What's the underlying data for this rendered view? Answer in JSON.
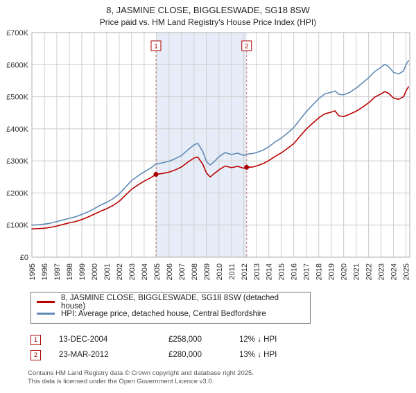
{
  "colors": {
    "accent": "#aa0000",
    "dashed": "#cc7777",
    "grid": "#cccccc",
    "plot_border": "#b0b0b0",
    "shade": "#e7edf8",
    "axis_text": "#333333"
  },
  "chart_data": {
    "type": "line",
    "title": "8, JASMINE CLOSE, BIGGLESWADE, SG18 8SW",
    "subtitle": "Price paid vs. HM Land Registry's House Price Index (HPI)",
    "xlabel": "",
    "ylabel": "",
    "grid": true,
    "legend_position": "bottom",
    "x_range": [
      1995,
      2025.3
    ],
    "ylim": [
      0,
      700000
    ],
    "x_ticks": [
      1995,
      1996,
      1997,
      1998,
      1999,
      2000,
      2001,
      2002,
      2003,
      2004,
      2005,
      2006,
      2007,
      2008,
      2009,
      2010,
      2011,
      2012,
      2013,
      2014,
      2015,
      2016,
      2017,
      2018,
      2019,
      2020,
      2021,
      2022,
      2023,
      2024,
      2025
    ],
    "y_ticks": [
      {
        "value": 0,
        "label": "£0"
      },
      {
        "value": 100000,
        "label": "£100K"
      },
      {
        "value": 200000,
        "label": "£200K"
      },
      {
        "value": 300000,
        "label": "£300K"
      },
      {
        "value": 400000,
        "label": "£400K"
      },
      {
        "value": 500000,
        "label": "£500K"
      },
      {
        "value": 600000,
        "label": "£600K"
      },
      {
        "value": 700000,
        "label": "£700K"
      }
    ],
    "x": [
      1995,
      1995.5,
      1996,
      1996.5,
      1997,
      1997.5,
      1998,
      1998.5,
      1999,
      1999.5,
      2000,
      2000.5,
      2001,
      2001.5,
      2002,
      2002.5,
      2003,
      2003.5,
      2004,
      2004.5,
      2004.95,
      2005.5,
      2006,
      2006.5,
      2007,
      2007.5,
      2008,
      2008.3,
      2008.7,
      2009,
      2009.3,
      2009.6,
      2010,
      2010.5,
      2011,
      2011.5,
      2012,
      2012.22,
      2012.7,
      2013,
      2013.5,
      2014,
      2014.5,
      2015,
      2015.5,
      2016,
      2016.5,
      2017,
      2017.5,
      2018,
      2018.5,
      2019,
      2019.3,
      2019.6,
      2020,
      2020.5,
      2021,
      2021.5,
      2022,
      2022.5,
      2023,
      2023.3,
      2023.6,
      2024,
      2024.4,
      2024.8,
      2025,
      2025.2
    ],
    "series": [
      {
        "name": "8, JASMINE CLOSE, BIGGLESWADE, SG18 8SW (detached house)",
        "color": "#bb0000",
        "values": [
          88000,
          89000,
          90000,
          93000,
          97000,
          102000,
          107000,
          111000,
          117000,
          125000,
          134000,
          143000,
          151000,
          161000,
          174000,
          193000,
          212000,
          225000,
          237000,
          247000,
          258000,
          261000,
          265000,
          272000,
          281000,
          296000,
          309000,
          312000,
          290000,
          262000,
          250000,
          260000,
          272000,
          284000,
          279000,
          283000,
          277000,
          280000,
          281000,
          284000,
          291000,
          301000,
          314000,
          325000,
          339000,
          354000,
          377000,
          399000,
          417000,
          434000,
          447000,
          452000,
          456000,
          441000,
          438000,
          446000,
          455000,
          467000,
          481000,
          499000,
          509000,
          516000,
          511000,
          496000,
          492000,
          500000,
          518000,
          531000
        ]
      },
      {
        "name": "HPI: Average price, detached house, Central Bedfordshire",
        "color": "#5f8ab4",
        "values": [
          100000,
          101000,
          103000,
          106000,
          111000,
          116000,
          121000,
          126000,
          133000,
          141000,
          151000,
          162000,
          171000,
          182000,
          197000,
          218000,
          239000,
          253000,
          266000,
          277000,
          290000,
          294000,
          299000,
          307000,
          317000,
          334000,
          350000,
          355000,
          330000,
          298000,
          287000,
          297000,
          313000,
          326000,
          320000,
          324000,
          317000,
          321000,
          323000,
          326000,
          333000,
          344000,
          359000,
          371000,
          387000,
          404000,
          429000,
          453000,
          474000,
          494000,
          509000,
          514000,
          518000,
          508000,
          506000,
          514000,
          527000,
          543000,
          559000,
          579000,
          592000,
          601000,
          594000,
          576000,
          571000,
          580000,
          601000,
          612000
        ]
      }
    ],
    "markers": [
      {
        "label": "1",
        "x": 2004.95,
        "value": 258000
      },
      {
        "label": "2",
        "x": 2012.22,
        "value": 280000
      }
    ],
    "shaded_region": {
      "from": 2004.95,
      "to": 2012.22
    }
  },
  "transactions": [
    {
      "num": "1",
      "date": "13-DEC-2004",
      "price": "£258,000",
      "hpi": "12% ↓ HPI"
    },
    {
      "num": "2",
      "date": "23-MAR-2012",
      "price": "£280,000",
      "hpi": "13% ↓ HPI"
    }
  ],
  "footer": {
    "line1": "Contains HM Land Registry data © Crown copyright and database right 2025.",
    "line2": "This data is licensed under the Open Government Licence v3.0."
  }
}
